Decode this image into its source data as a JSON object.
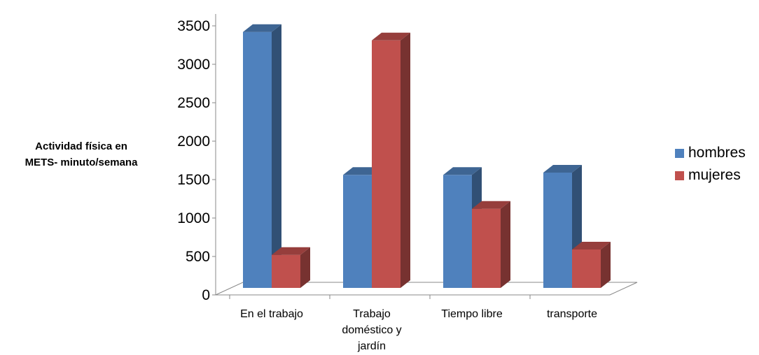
{
  "chart_data": {
    "type": "bar",
    "categories": [
      "En el trabajo",
      "Trabajo doméstico y jardín",
      "Tiempo libre",
      "transporte"
    ],
    "category_lines": [
      [
        "En el trabajo"
      ],
      [
        "Trabajo",
        "doméstico y",
        "jardín"
      ],
      [
        "Tiempo libre"
      ],
      [
        "transporte"
      ]
    ],
    "series": [
      {
        "name": "hombres",
        "values": [
          3330,
          1470,
          1470,
          1500
        ],
        "color": "#4F81BD"
      },
      {
        "name": "mujeres",
        "values": [
          430,
          3220,
          1030,
          500
        ],
        "color": "#C0504D"
      }
    ],
    "ylabel": "Actividad física en\nMETS- minuto/semana",
    "xlabel": "",
    "ylim": [
      0,
      3500
    ],
    "yticks": [
      "0",
      "500",
      "1000",
      "1500",
      "2000",
      "2500",
      "3000",
      "3500"
    ],
    "grid": false,
    "legend_position": "right",
    "style": "3d-column"
  }
}
